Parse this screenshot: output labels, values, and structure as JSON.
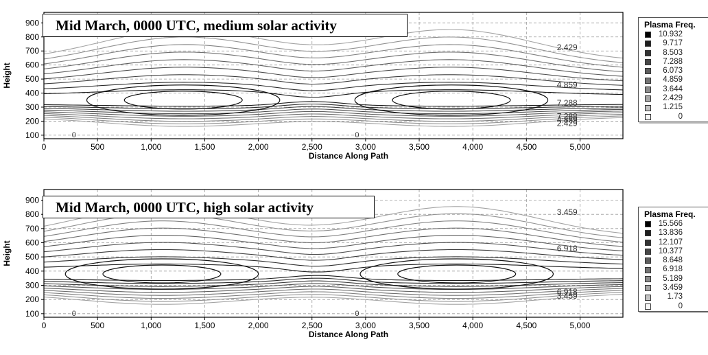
{
  "chart_data": [
    {
      "type": "contour",
      "annotation": "Mid March, 0000 UTC, medium solar activity",
      "xlabel": "Distance Along Path",
      "ylabel": "Height",
      "xlim": [
        0,
        5400
      ],
      "ylim": [
        75,
        975
      ],
      "x_ticks": [
        0,
        500,
        1000,
        1500,
        2000,
        2500,
        3000,
        3500,
        4000,
        4500,
        5000
      ],
      "x_tick_labels": [
        "0",
        "500",
        "1,000",
        "1,500",
        "2,000",
        "2,500",
        "3,000",
        "3,500",
        "4,000",
        "4,500",
        "5,000"
      ],
      "y_ticks": [
        100,
        200,
        300,
        400,
        500,
        600,
        700,
        800,
        900
      ],
      "y_tick_labels": [
        "100",
        "200",
        "300",
        "400",
        "500",
        "600",
        "700",
        "800",
        "900"
      ],
      "grid": true,
      "legend": {
        "title": "Plasma Freq.",
        "placement": "right",
        "values": [
          "10.932",
          "9.717",
          "8.503",
          "7.288",
          "6.073",
          "4.859",
          "3.644",
          "2.429",
          "1.215",
          "0"
        ],
        "colors": [
          "#000000",
          "#1e1e1e",
          "#333333",
          "#484848",
          "#5e5e5e",
          "#747474",
          "#8c8c8c",
          "#a6a6a6",
          "#c2c2c2",
          "#f6f6f6"
        ]
      },
      "contour_labels": [
        {
          "text": "2.429",
          "x": 4880,
          "y": 725
        },
        {
          "text": "4.859",
          "x": 4880,
          "y": 460
        },
        {
          "text": "7.288",
          "x": 4880,
          "y": 330
        },
        {
          "text": "7.288",
          "x": 4880,
          "y": 235
        },
        {
          "text": "4.859",
          "x": 4880,
          "y": 210
        },
        {
          "text": "2.429",
          "x": 4880,
          "y": 185
        }
      ],
      "zero_marks": [
        {
          "text": "0",
          "x": 280
        },
        {
          "text": "0",
          "x": 2920
        }
      ],
      "peak_center_x": [
        1300,
        3800
      ],
      "trough_x": 2500,
      "peak_height": 340,
      "max_level": 10.932
    },
    {
      "type": "contour",
      "annotation": "Mid March, 0000 UTC, high solar activity",
      "xlabel": "Distance Along Path",
      "ylabel": "Height",
      "xlim": [
        0,
        5400
      ],
      "ylim": [
        75,
        975
      ],
      "x_ticks": [
        0,
        500,
        1000,
        1500,
        2000,
        2500,
        3000,
        3500,
        4000,
        4500,
        5000
      ],
      "x_tick_labels": [
        "0",
        "500",
        "1,000",
        "1,500",
        "2,000",
        "2,500",
        "3,000",
        "3,500",
        "4,000",
        "4,500",
        "5,000"
      ],
      "y_ticks": [
        100,
        200,
        300,
        400,
        500,
        600,
        700,
        800,
        900
      ],
      "y_tick_labels": [
        "100",
        "200",
        "300",
        "400",
        "500",
        "600",
        "700",
        "800",
        "900"
      ],
      "grid": true,
      "legend": {
        "title": "Plasma Freq.",
        "placement": "right",
        "values": [
          "15.566",
          "13.836",
          "12.107",
          "10.377",
          "8.648",
          "6.918",
          "5.189",
          "3.459",
          "1.73",
          "0"
        ],
        "colors": [
          "#000000",
          "#1e1e1e",
          "#333333",
          "#484848",
          "#5e5e5e",
          "#747474",
          "#8c8c8c",
          "#a6a6a6",
          "#c2c2c2",
          "#f6f6f6"
        ]
      },
      "contour_labels": [
        {
          "text": "3.459",
          "x": 4880,
          "y": 815
        },
        {
          "text": "6.918",
          "x": 4880,
          "y": 560
        },
        {
          "text": "6.918",
          "x": 4880,
          "y": 255
        },
        {
          "text": "3.459",
          "x": 4880,
          "y": 225
        }
      ],
      "zero_marks": [
        {
          "text": "0",
          "x": 280
        },
        {
          "text": "0",
          "x": 2920
        }
      ],
      "peak_center_x": [
        1100,
        3850
      ],
      "trough_x": 2550,
      "peak_height": 370,
      "max_level": 15.566
    }
  ]
}
